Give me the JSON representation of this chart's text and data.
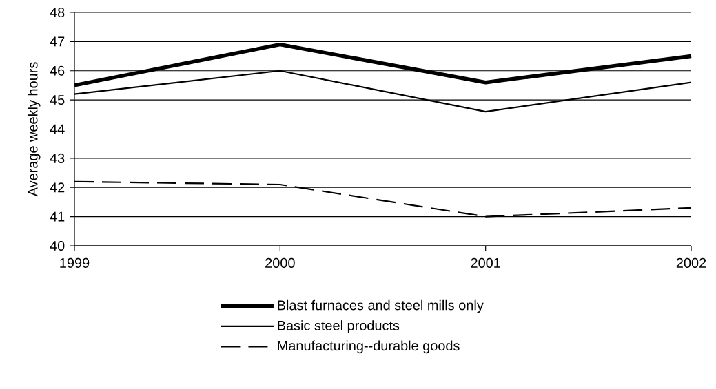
{
  "chart_data": {
    "type": "line",
    "ylabel": "Average weekly hours",
    "x": [
      1999,
      2000,
      2001,
      2002
    ],
    "series": [
      {
        "name": "Blast furnaces and steel mills only",
        "color": "#000000",
        "values": [
          45.5,
          46.9,
          45.6,
          46.5
        ],
        "line_style": "solid"
      },
      {
        "name": "Basic steel products",
        "color": "#000000",
        "values": [
          45.2,
          46.0,
          44.6,
          45.6
        ],
        "line_style": "solid"
      },
      {
        "name": "Manufacturing--durable goods",
        "color": "#000000",
        "values": [
          42.2,
          42.1,
          41.0,
          41.3
        ],
        "line_style": "dashed"
      }
    ],
    "xlim": [
      1999,
      2002
    ],
    "xticks": [
      1999,
      2000,
      2001,
      2002
    ],
    "ylim": [
      40,
      48
    ],
    "yticks": [
      40,
      41,
      42,
      43,
      44,
      45,
      46,
      47,
      48
    ],
    "grid": "y",
    "legend": "bottom",
    "marker": "none"
  }
}
